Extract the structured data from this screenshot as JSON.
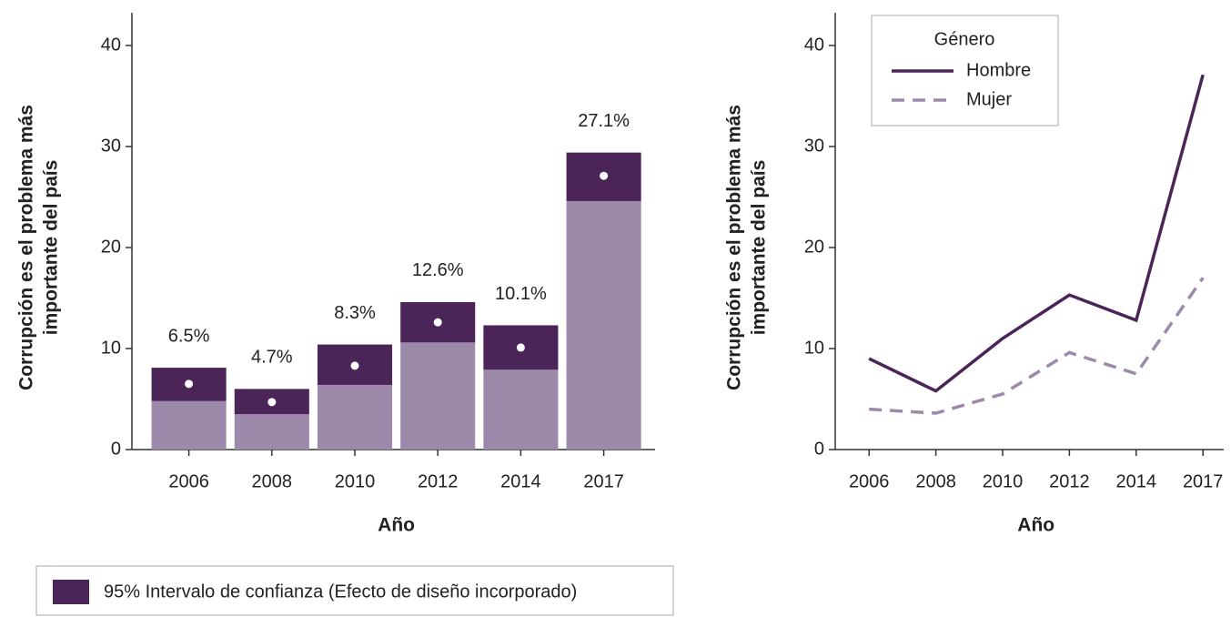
{
  "chart_data": [
    {
      "type": "bar",
      "ylabel": [
        "Corrupción es el problema más",
        "importante del país"
      ],
      "xlabel": "Año",
      "categories": [
        "2006",
        "2008",
        "2010",
        "2012",
        "2014",
        "2017"
      ],
      "values": [
        6.5,
        4.7,
        8.3,
        12.6,
        10.1,
        27.1
      ],
      "value_labels": [
        "6.5%",
        "4.7%",
        "8.3%",
        "12.6%",
        "10.1%",
        "27.1%"
      ],
      "lower": [
        4.8,
        3.5,
        6.4,
        10.6,
        7.9,
        24.6
      ],
      "upper": [
        8.1,
        6.0,
        10.4,
        14.6,
        12.3,
        29.4
      ],
      "color": "#9d8aab",
      "ci_color": "#4b2458",
      "ci_label": "95% Intervalo de confianza (Efecto de diseño incorporado)",
      "ylim": [
        0,
        40
      ],
      "yticks": [
        0,
        10,
        20,
        30,
        40
      ]
    },
    {
      "type": "line",
      "ylabel": [
        "Corrupción es el problema más",
        "importante del país"
      ],
      "xlabel": "Año",
      "legend_title": "Género",
      "categories": [
        "2006",
        "2008",
        "2010",
        "2012",
        "2014",
        "2017"
      ],
      "series": [
        {
          "name": "Hombre",
          "color": "#4b2458",
          "dash": false,
          "values": [
            9.0,
            5.8,
            11.0,
            15.3,
            12.8,
            37.1
          ]
        },
        {
          "name": "Mujer",
          "color": "#9d8aab",
          "dash": true,
          "values": [
            4.0,
            3.6,
            5.5,
            9.6,
            7.5,
            17.0
          ]
        }
      ],
      "ylim": [
        0,
        40
      ],
      "yticks": [
        0,
        10,
        20,
        30,
        40
      ]
    }
  ]
}
